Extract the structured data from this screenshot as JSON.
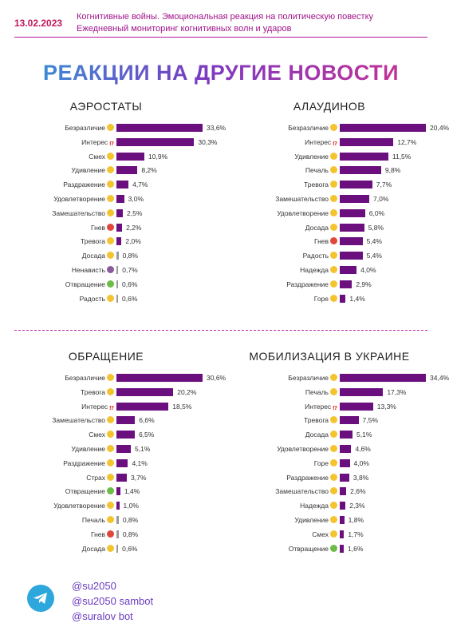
{
  "header": {
    "date": "13.02.2023",
    "subtitle_line1": "Когнитивные войны. Эмоциональная реакция на политическую повестку",
    "subtitle_line2": "Ежедневный мониторинг когнитивных волн и ударов"
  },
  "main_title": "РЕАКЦИИ НА ДРУГИЕ НОВОСТИ",
  "colors": {
    "bar": "#6b0f7f",
    "accent_pink": "#c2185b",
    "emoji_yellow": "#f4c430",
    "emoji_red": "#e0463a",
    "emoji_green": "#6bbd45",
    "emoji_purple": "#8a5a9c",
    "interest_mark": "#e53935"
  },
  "footer": {
    "icon": "telegram-icon",
    "handles": [
      "@su2050",
      "@su2050 sambot",
      "@suralov bot"
    ]
  },
  "chart_data": [
    {
      "type": "bar",
      "title": "АЭРОСТАТЫ",
      "categories": [
        "Безразличие",
        "Интерес",
        "Смех",
        "Удивление",
        "Раздражение",
        "Удовлетворение",
        "Замешательство",
        "Гнев",
        "Тревога",
        "Досада",
        "Ненависть",
        "Отвращение",
        "Радость"
      ],
      "values": [
        33.6,
        30.3,
        10.9,
        8.2,
        4.7,
        3.0,
        2.5,
        2.2,
        2.0,
        0.8,
        0.7,
        0.6,
        0.6
      ],
      "labels": [
        "33,6%",
        "30,3%",
        "10,9%",
        "8,2%",
        "4,7%",
        "3,0%",
        "2,5%",
        "2,2%",
        "2,0%",
        "0,8%",
        "0,7%",
        "0,6%",
        "0,6%"
      ],
      "emoji": [
        "yellow",
        "interest",
        "yellow",
        "yellow",
        "yellow",
        "yellow",
        "yellow",
        "red",
        "yellow",
        "yellow",
        "purple",
        "green",
        "yellow"
      ]
    },
    {
      "type": "bar",
      "title": "АЛАУДИНОВ",
      "categories": [
        "Безразличие",
        "Интерес",
        "Удивление",
        "Печаль",
        "Тревога",
        "Замешательство",
        "Удовлетворение",
        "Досада",
        "Гнев",
        "Радость",
        "Надежда",
        "Раздражение",
        "Горе"
      ],
      "values": [
        20.4,
        12.7,
        11.5,
        9.8,
        7.7,
        7.0,
        6.0,
        5.8,
        5.4,
        5.4,
        4.0,
        2.9,
        1.4
      ],
      "labels": [
        "20,4%",
        "12,7%",
        "11,5%",
        "9,8%",
        "7,7%",
        "7,0%",
        "6,0%",
        "5,8%",
        "5,4%",
        "5,4%",
        "4,0%",
        "2,9%",
        "1,4%"
      ],
      "emoji": [
        "yellow",
        "interest",
        "yellow",
        "yellow",
        "yellow",
        "yellow",
        "yellow",
        "yellow",
        "red",
        "yellow",
        "yellow",
        "yellow",
        "yellow"
      ]
    },
    {
      "type": "bar",
      "title": "ОБРАЩЕНИЕ",
      "categories": [
        "Безразличие",
        "Тревога",
        "Интерес",
        "Замешательство",
        "Смех",
        "Удивление",
        "Раздражение",
        "Страх",
        "Отвращение",
        "Удовлетворение",
        "Печаль",
        "Гнев",
        "Досада"
      ],
      "values": [
        30.6,
        20.2,
        18.5,
        6.6,
        6.5,
        5.1,
        4.1,
        3.7,
        1.4,
        1.0,
        0.8,
        0.8,
        0.6
      ],
      "labels": [
        "30,6%",
        "20,2%",
        "18,5%",
        "6,6%",
        "6,5%",
        "5,1%",
        "4,1%",
        "3,7%",
        "1,4%",
        "1,0%",
        "0,8%",
        "0,8%",
        "0,6%"
      ],
      "emoji": [
        "yellow",
        "yellow",
        "interest",
        "yellow",
        "yellow",
        "yellow",
        "yellow",
        "yellow",
        "green",
        "yellow",
        "yellow",
        "red",
        "yellow"
      ]
    },
    {
      "type": "bar",
      "title": "МОБИЛИЗАЦИЯ В УКРАИНЕ",
      "categories": [
        "Безразличие",
        "Печаль",
        "Интерес",
        "Тревога",
        "Досада",
        "Удовлетворение",
        "Горе",
        "Раздражение",
        "Замешательство",
        "Надежда",
        "Удивление",
        "Смех",
        "Отвращение"
      ],
      "values": [
        34.4,
        17.3,
        13.3,
        7.5,
        5.1,
        4.6,
        4.0,
        3.8,
        2.6,
        2.3,
        1.8,
        1.7,
        1.6
      ],
      "labels": [
        "34,4%",
        "17,3%",
        "13,3%",
        "7,5%",
        "5,1%",
        "4,6%",
        "4,0%",
        "3,8%",
        "2,6%",
        "2,3%",
        "1,8%",
        "1,7%",
        "1,6%"
      ],
      "emoji": [
        "yellow",
        "yellow",
        "interest",
        "yellow",
        "yellow",
        "yellow",
        "yellow",
        "yellow",
        "yellow",
        "yellow",
        "yellow",
        "yellow",
        "green"
      ]
    }
  ]
}
